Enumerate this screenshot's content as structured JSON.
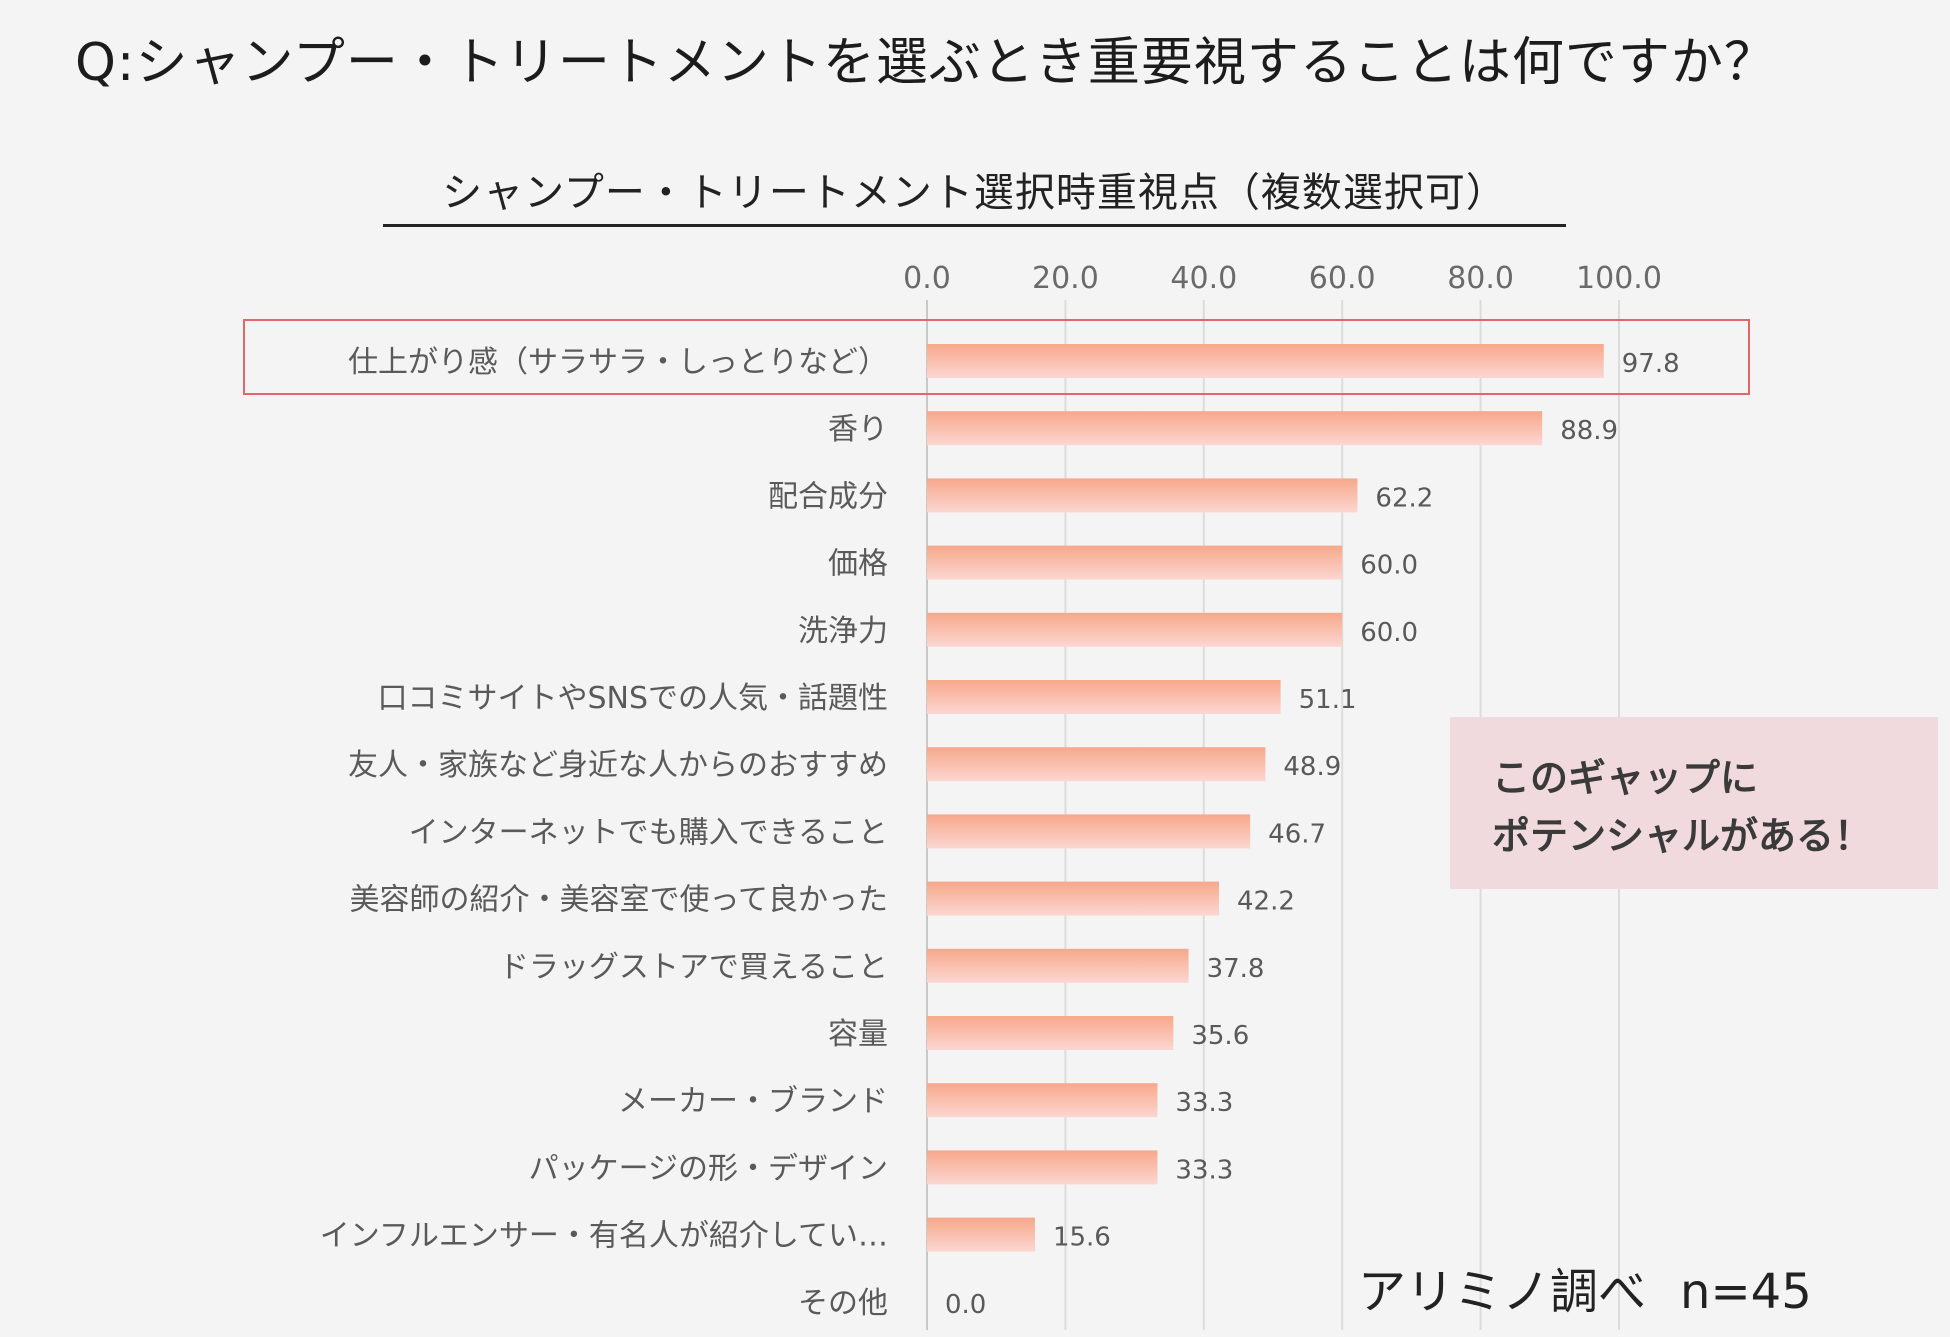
{
  "question": "Q:シャンプー・トリートメントを選ぶとき重要視することは何ですか？",
  "callout": {
    "line1": "このギャップに",
    "line2": "ポテンシャルがある！"
  },
  "source": {
    "label": "アリミノ調べ",
    "n": "n=45"
  },
  "colors": {
    "bar_top": "#f6a88a",
    "bar_bottom": "#fcd6d2",
    "highlight_border": "#e0686a",
    "callout_bg": "#f0dadd",
    "background": "#f4f4f4"
  },
  "chart_data": {
    "type": "bar",
    "orientation": "horizontal",
    "title": "シャンプー・トリートメント選択時重視点（複数選択可）",
    "xlim": [
      0,
      100
    ],
    "ticks": [
      "0.0",
      "20.0",
      "40.0",
      "60.0",
      "80.0",
      "100.0"
    ],
    "tick_values": [
      0,
      20,
      40,
      60,
      80,
      100
    ],
    "categories": [
      "仕上がり感（サラサラ・しっとりなど）",
      "香り",
      "配合成分",
      "価格",
      "洗浄力",
      "口コミサイトやSNSでの人気・話題性",
      "友人・家族など身近な人からのおすすめ",
      "インターネットでも購入できること",
      "美容師の紹介・美容室で使って良かった",
      "ドラッグストアで買えること",
      "容量",
      "メーカー・ブランド",
      "パッケージの形・デザイン",
      "インフルエンサー・有名人が紹介してい…",
      "その他"
    ],
    "values": [
      97.8,
      88.9,
      62.2,
      60.0,
      60.0,
      51.1,
      48.9,
      46.7,
      42.2,
      37.8,
      35.6,
      33.3,
      33.3,
      15.6,
      0.0
    ],
    "value_labels": [
      "97.8",
      "88.9",
      "62.2",
      "60.0",
      "60.0",
      "51.1",
      "48.9",
      "46.7",
      "42.2",
      "37.8",
      "35.6",
      "33.3",
      "33.3",
      "15.6",
      "0.0"
    ],
    "highlighted_index": 0,
    "grid": true
  }
}
